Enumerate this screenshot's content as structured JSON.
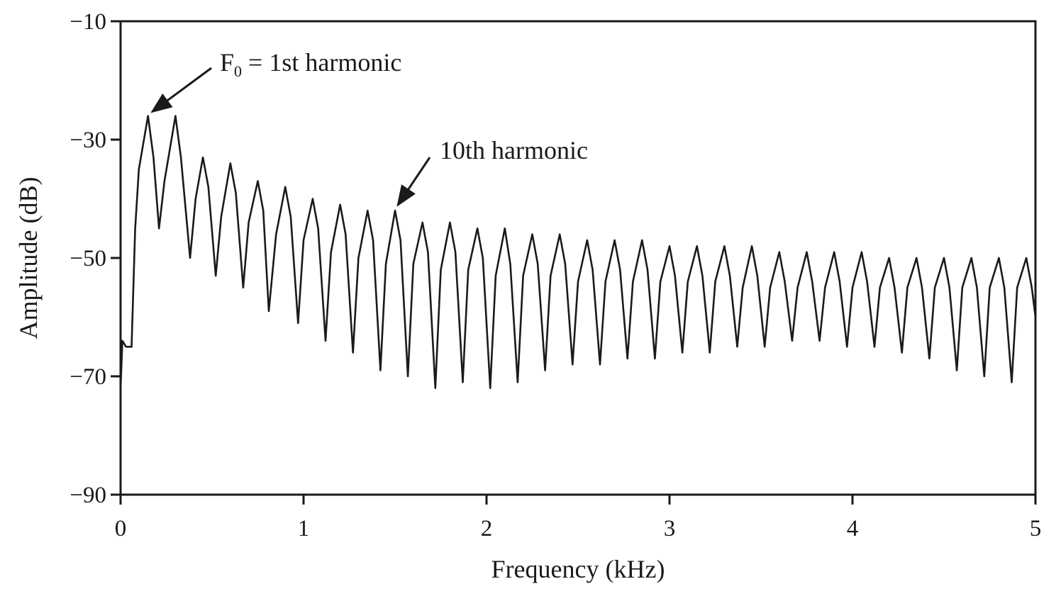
{
  "chart_data": {
    "type": "line",
    "xlabel": "Frequency (kHz)",
    "ylabel": "Amplitude (dB)",
    "xlim": [
      0,
      5
    ],
    "ylim": [
      -90,
      -10
    ],
    "x_ticks": [
      0,
      1,
      2,
      3,
      4,
      5
    ],
    "x_tick_labels": [
      "0",
      "1",
      "2",
      "3",
      "4",
      "5"
    ],
    "y_ticks": [
      -10,
      -30,
      -50,
      -70,
      -90
    ],
    "y_tick_labels": [
      "−10",
      "−30",
      "−50",
      "−70",
      "−90"
    ],
    "grid": false,
    "line_color": "#1a1a1a",
    "series": [
      {
        "x": [
          0.0,
          0.01,
          0.03,
          0.06,
          0.08,
          0.1,
          0.15,
          0.18,
          0.21,
          0.24,
          0.3,
          0.33,
          0.38,
          0.41,
          0.45,
          0.48,
          0.52,
          0.55,
          0.6,
          0.63,
          0.67,
          0.7,
          0.75,
          0.78,
          0.81,
          0.85,
          0.9,
          0.93,
          0.97,
          1.0,
          1.05,
          1.08,
          1.12,
          1.15,
          1.2,
          1.23,
          1.27,
          1.3,
          1.35,
          1.38,
          1.42,
          1.45,
          1.5,
          1.53,
          1.57,
          1.6,
          1.65,
          1.68,
          1.72,
          1.75,
          1.8,
          1.83,
          1.87,
          1.9,
          1.95,
          1.98,
          2.02,
          2.05,
          2.1,
          2.13,
          2.17,
          2.2,
          2.25,
          2.28,
          2.32,
          2.35,
          2.4,
          2.43,
          2.47,
          2.5,
          2.55,
          2.58,
          2.62,
          2.65,
          2.7,
          2.73,
          2.77,
          2.8,
          2.85,
          2.88,
          2.92,
          2.95,
          3.0,
          3.03,
          3.07,
          3.1,
          3.15,
          3.18,
          3.22,
          3.25,
          3.3,
          3.33,
          3.37,
          3.4,
          3.45,
          3.48,
          3.52,
          3.55,
          3.6,
          3.63,
          3.67,
          3.7,
          3.75,
          3.78,
          3.82,
          3.85,
          3.9,
          3.93,
          3.97,
          4.0,
          4.05,
          4.08,
          4.12,
          4.15,
          4.2,
          4.23,
          4.27,
          4.3,
          4.35,
          4.38,
          4.42,
          4.45,
          4.5,
          4.53,
          4.57,
          4.6,
          4.65,
          4.68,
          4.72,
          4.75,
          4.8,
          4.83,
          4.87,
          4.9,
          4.95,
          4.98,
          5.0
        ],
        "y": [
          -72,
          -64,
          -65,
          -65,
          -45,
          -35,
          -26,
          -33,
          -45,
          -37,
          -26,
          -33,
          -50,
          -40,
          -33,
          -38,
          -53,
          -43,
          -34,
          -39,
          -55,
          -44,
          -37,
          -42,
          -59,
          -46,
          -38,
          -43,
          -61,
          -47,
          -40,
          -45,
          -64,
          -49,
          -41,
          -46,
          -66,
          -50,
          -42,
          -47,
          -69,
          -51,
          -42,
          -47,
          -70,
          -51,
          -44,
          -49,
          -72,
          -52,
          -44,
          -49,
          -71,
          -52,
          -45,
          -50,
          -72,
          -53,
          -45,
          -51,
          -71,
          -53,
          -46,
          -51,
          -69,
          -53,
          -46,
          -51,
          -68,
          -54,
          -47,
          -52,
          -68,
          -54,
          -47,
          -52,
          -67,
          -54,
          -47,
          -52,
          -67,
          -54,
          -48,
          -53,
          -66,
          -54,
          -48,
          -53,
          -66,
          -54,
          -48,
          -53,
          -65,
          -55,
          -48,
          -53,
          -65,
          -55,
          -49,
          -54,
          -64,
          -55,
          -49,
          -54,
          -64,
          -55,
          -49,
          -54,
          -65,
          -55,
          -49,
          -54,
          -65,
          -55,
          -50,
          -55,
          -66,
          -55,
          -50,
          -55,
          -67,
          -55,
          -50,
          -55,
          -69,
          -55,
          -50,
          -55,
          -70,
          -55,
          -50,
          -55,
          -71,
          -55,
          -50,
          -55,
          -60
        ]
      }
    ],
    "annotations": [
      {
        "label_main": "F",
        "label_sub": "0",
        "label_rest": " = 1st harmonic",
        "target_x": 0.15,
        "target_y": -26
      },
      {
        "label_main": "10th harmonic",
        "target_x": 1.5,
        "target_y": -42
      }
    ]
  }
}
